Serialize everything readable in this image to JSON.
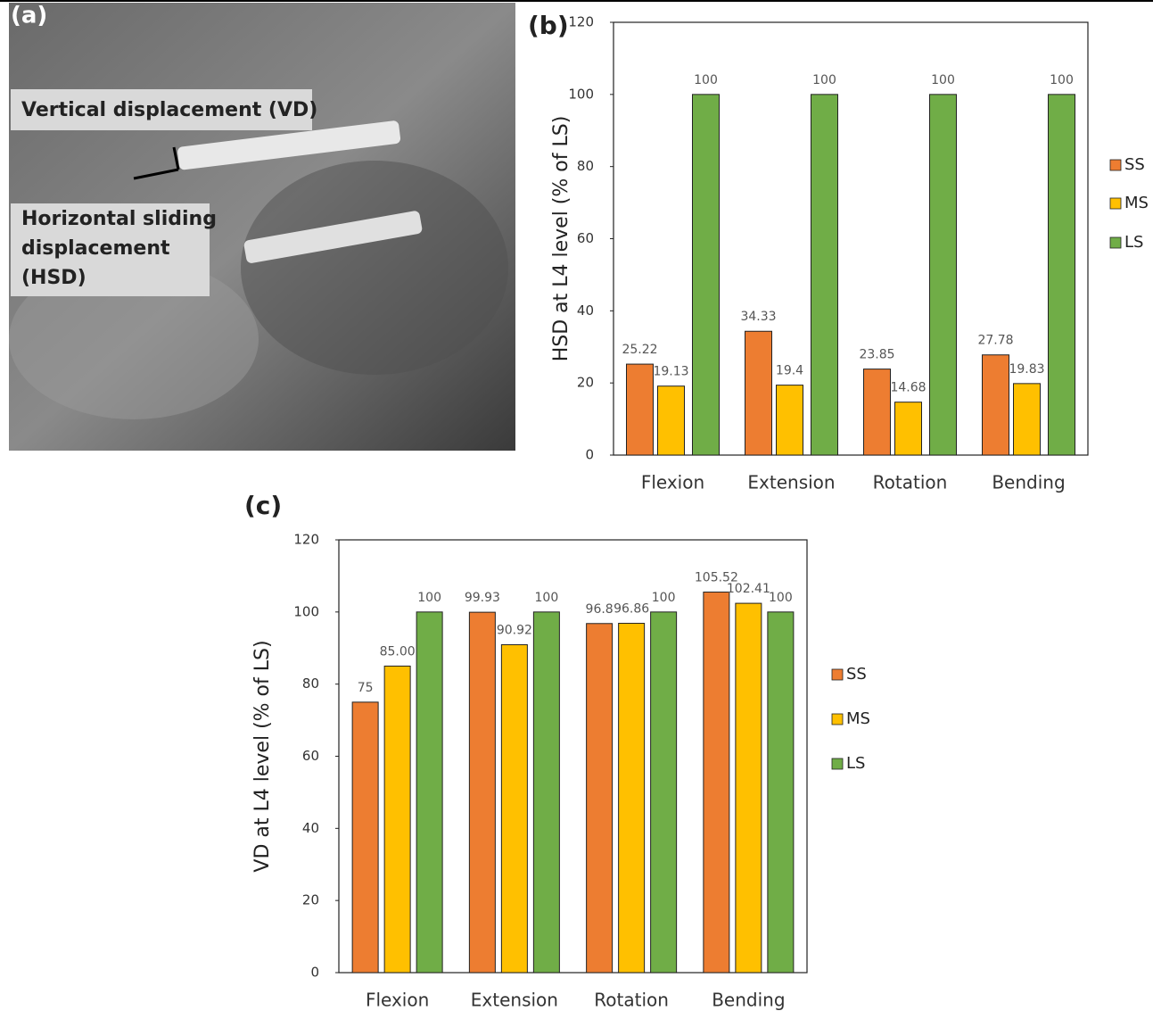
{
  "figure": {
    "image_label": "(a)",
    "annotations": [
      [
        "Vertical displacement (VD)"
      ],
      [
        "Horizontal sliding",
        "displacement",
        "(HSD)"
      ]
    ]
  },
  "chart_data": [
    {
      "type": "bar",
      "title": "(b)",
      "y_label": "HSD at L4 level (% of LS)",
      "categories": [
        "Flexion",
        "Extension",
        "Rotation",
        "Bending"
      ],
      "series": [
        {
          "name": "SS",
          "color": "#ed7d31",
          "values": [
            25.22,
            34.33,
            23.85,
            27.78
          ]
        },
        {
          "name": "MS",
          "color": "#ffc000",
          "values": [
            19.13,
            19.4,
            14.68,
            19.83
          ]
        },
        {
          "name": "LS",
          "color": "#70ad47",
          "values": [
            100,
            100,
            100,
            100
          ]
        }
      ],
      "ylim": [
        0,
        120
      ],
      "yticks": [
        0,
        20,
        40,
        60,
        80,
        100,
        120
      ],
      "grid": false,
      "legend": "right"
    },
    {
      "type": "bar",
      "title": "(c)",
      "y_label": "VD at L4 level (% of LS)",
      "categories": [
        "Flexion",
        "Extension",
        "Rotation",
        "Bending"
      ],
      "series": [
        {
          "name": "SS",
          "color": "#ed7d31",
          "values": [
            75,
            99.93,
            96.8,
            105.52
          ]
        },
        {
          "name": "MS",
          "color": "#ffc000",
          "values": [
            85,
            90.92,
            96.86,
            102.41
          ],
          "value_labels": [
            "85.00",
            "90.92",
            "96.86",
            "102.41"
          ]
        },
        {
          "name": "LS",
          "color": "#70ad47",
          "values": [
            100,
            100,
            100,
            100
          ]
        }
      ],
      "ylim": [
        0,
        120
      ],
      "yticks": [
        0,
        20,
        40,
        60,
        80,
        100,
        120
      ],
      "grid": false,
      "legend": "right"
    }
  ]
}
